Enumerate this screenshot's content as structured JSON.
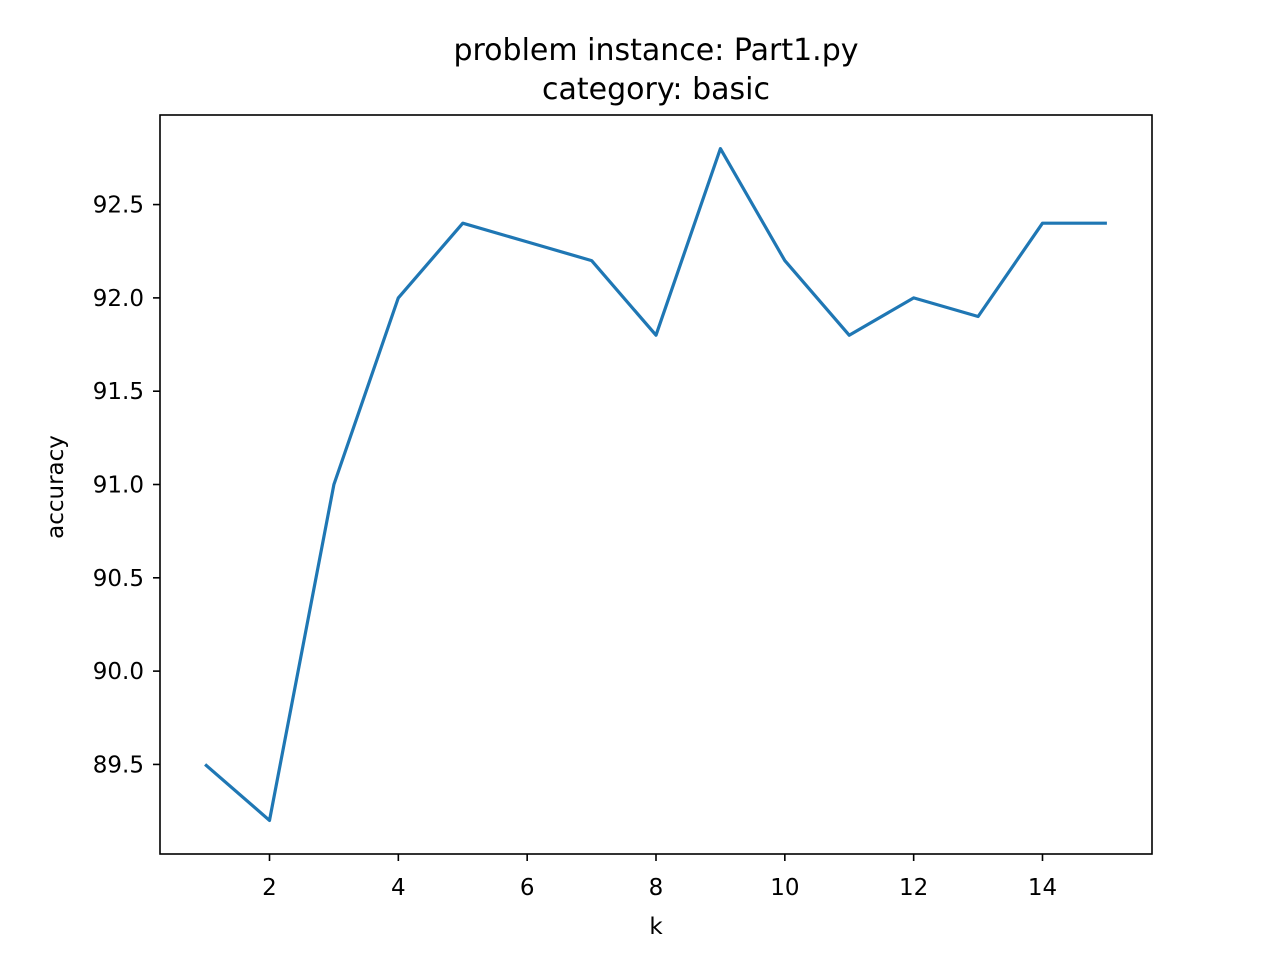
{
  "chart_data": {
    "type": "line",
    "title_line1": "problem instance: Part1.py",
    "title_line2": "category: basic",
    "xlabel": "k",
    "ylabel": "accuracy",
    "x": [
      1,
      2,
      3,
      4,
      5,
      6,
      7,
      8,
      9,
      10,
      11,
      12,
      13,
      14,
      15
    ],
    "series": [
      {
        "values": [
          89.5,
          89.2,
          91.0,
          92.0,
          92.4,
          92.3,
          92.2,
          91.8,
          92.8,
          92.2,
          91.8,
          92.0,
          91.9,
          92.4,
          92.4
        ],
        "color": "#1f77b4"
      }
    ],
    "xlim": [
      0.3,
      15.7
    ],
    "ylim": [
      89.02,
      92.98
    ],
    "xticks": [
      2,
      4,
      6,
      8,
      10,
      12,
      14
    ],
    "xtick_labels": [
      "2",
      "4",
      "6",
      "8",
      "10",
      "12",
      "14"
    ],
    "yticks": [
      89.5,
      90.0,
      90.5,
      91.0,
      91.5,
      92.0,
      92.5
    ],
    "ytick_labels": [
      "89.5",
      "90.0",
      "90.5",
      "91.0",
      "91.5",
      "92.0",
      "92.5"
    ],
    "grid": false,
    "legend": "none"
  }
}
